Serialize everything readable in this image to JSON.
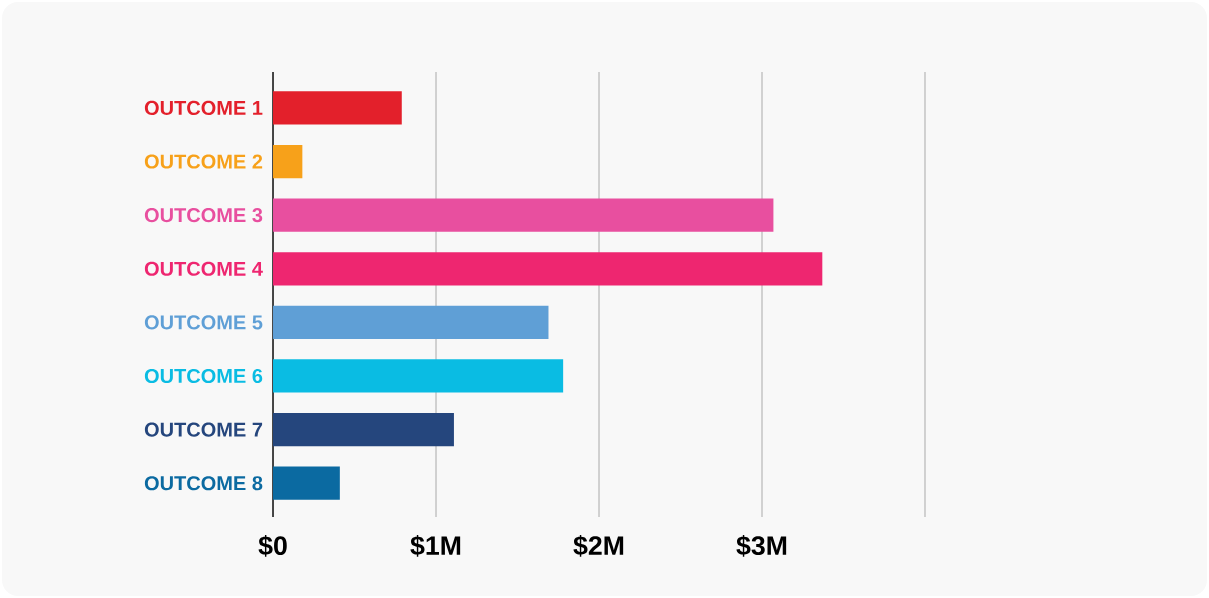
{
  "chart_data": {
    "type": "bar",
    "orientation": "horizontal",
    "categories": [
      "OUTCOME 1",
      "OUTCOME 2",
      "OUTCOME 3",
      "OUTCOME 4",
      "OUTCOME 5",
      "OUTCOME 6",
      "OUTCOME 7",
      "OUTCOME 8"
    ],
    "values": [
      0.79,
      0.18,
      3.07,
      3.37,
      1.69,
      1.78,
      1.11,
      0.41
    ],
    "colors": [
      "#e3202b",
      "#f7a11a",
      "#e84f9f",
      "#ee2670",
      "#5f9fd6",
      "#0abce3",
      "#25467d",
      "#0b6aa1"
    ],
    "xlim": [
      0,
      4
    ],
    "xticks": [
      {
        "value": 0,
        "label": "$0"
      },
      {
        "value": 1,
        "label": "$1M"
      },
      {
        "value": 2,
        "label": "$2M"
      },
      {
        "value": 3,
        "label": "$3M"
      },
      {
        "value": 4,
        "label": null
      }
    ],
    "grid": "x"
  }
}
